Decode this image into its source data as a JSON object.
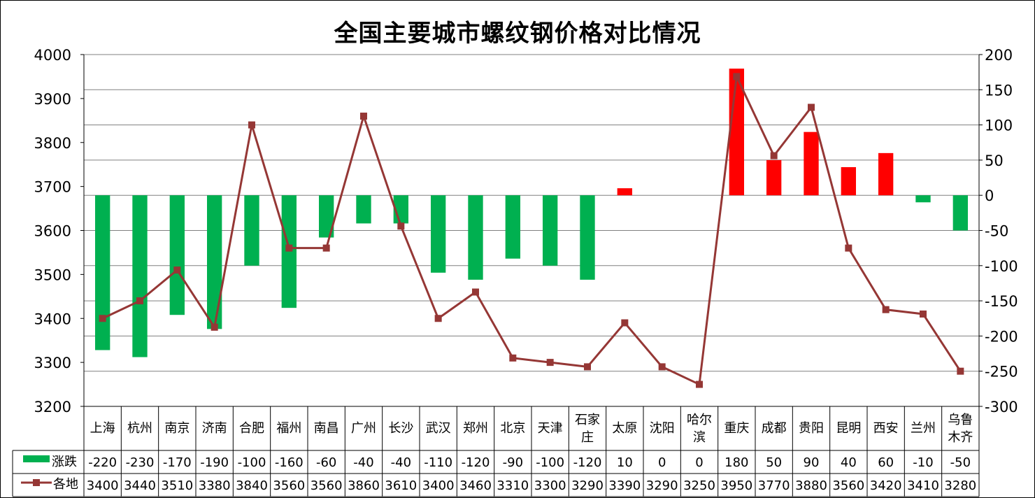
{
  "chart_data": {
    "type": "bar",
    "title": "全国主要城市螺纹钢价格对比情况",
    "categories": [
      "上海",
      "杭州",
      "南京",
      "济南",
      "合肥",
      "福州",
      "南昌",
      "广州",
      "长沙",
      "武汉",
      "郑州",
      "北京",
      "天津",
      "石家庄",
      "太原",
      "沈阳",
      "哈尔滨",
      "重庆",
      "成都",
      "贵阳",
      "昆明",
      "西安",
      "兰州",
      "乌鲁木齐"
    ],
    "category_display": [
      [
        "上海"
      ],
      [
        "杭州"
      ],
      [
        "南京"
      ],
      [
        "济南"
      ],
      [
        "合肥"
      ],
      [
        "福州"
      ],
      [
        "南昌"
      ],
      [
        "广州"
      ],
      [
        "长沙"
      ],
      [
        "武汉"
      ],
      [
        "郑州"
      ],
      [
        "北京"
      ],
      [
        "天津"
      ],
      [
        "石家",
        "庄"
      ],
      [
        "太原"
      ],
      [
        "沈阳"
      ],
      [
        "哈尔",
        "滨"
      ],
      [
        "重庆"
      ],
      [
        "成都"
      ],
      [
        "贵阳"
      ],
      [
        "昆明"
      ],
      [
        "西安"
      ],
      [
        "兰州"
      ],
      [
        "乌鲁",
        "木齐"
      ]
    ],
    "series": [
      {
        "name": "涨跌",
        "type": "bar",
        "axis": "right",
        "values": [
          -220,
          -230,
          -170,
          -190,
          -100,
          -160,
          -60,
          -40,
          -40,
          -110,
          -120,
          -90,
          -100,
          -120,
          10,
          0,
          0,
          180,
          50,
          90,
          40,
          60,
          -10,
          -50
        ],
        "color_negative": "#00b050",
        "color_positive": "#ff0000"
      },
      {
        "name": "各地",
        "type": "line",
        "axis": "left",
        "values": [
          3400,
          3440,
          3510,
          3380,
          3840,
          3560,
          3560,
          3860,
          3610,
          3400,
          3460,
          3310,
          3300,
          3290,
          3390,
          3290,
          3250,
          3950,
          3770,
          3880,
          3560,
          3420,
          3410,
          3280
        ],
        "color": "#953735",
        "marker_color": "#953735"
      }
    ],
    "left_axis": {
      "ylim": [
        3200,
        4000
      ],
      "ticks": [
        3200,
        3300,
        3400,
        3500,
        3600,
        3700,
        3800,
        3900,
        4000
      ]
    },
    "right_axis": {
      "ylim": [
        -300,
        200
      ],
      "ticks": [
        -300,
        -250,
        -200,
        -150,
        -100,
        -50,
        0,
        50,
        100,
        150,
        200
      ]
    },
    "grid": true,
    "legend": "data-table"
  }
}
